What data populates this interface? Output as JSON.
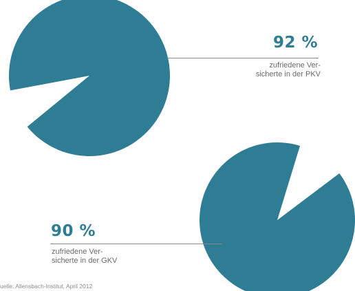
{
  "chart_data": [
    {
      "type": "pie",
      "value_label": "92 %",
      "caption_lines": [
        "zufriedene Ver-",
        "sicherte in der PKV"
      ],
      "slices": [
        {
          "category": "zufriedene Versicherte in der PKV",
          "value": 92,
          "color": "#2f7d95"
        },
        {
          "category": "",
          "value": 8,
          "color": "#ffffff"
        }
      ]
    },
    {
      "type": "pie",
      "value_label": "90 %",
      "caption_lines": [
        "zufriedene Ver-",
        "sicherte in der GKV"
      ],
      "slices": [
        {
          "category": "zufriedene Versicherte in der GKV",
          "value": 90,
          "color": "#2f7d95"
        },
        {
          "category": "",
          "value": 10,
          "color": "#ffffff"
        }
      ]
    }
  ],
  "source": "uelle: Allensbach-Institut, April 2012"
}
